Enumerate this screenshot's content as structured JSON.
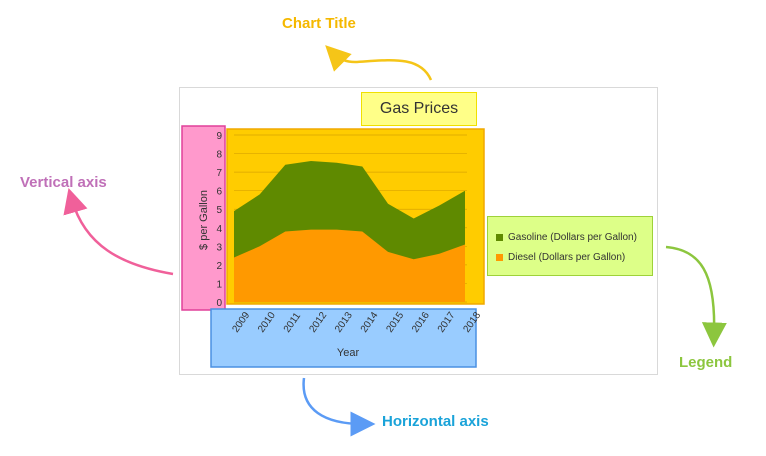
{
  "callouts": {
    "chart_title": "Chart Title",
    "vertical_axis": "Vertical axis",
    "horizontal_axis": "Horizontal axis",
    "legend": "Legend"
  },
  "colors": {
    "chart_title_callout": "#f5b800",
    "vertical_axis_callout": "#c070b8",
    "horizontal_axis_callout": "#1aa3d9",
    "legend_callout": "#8cc63e",
    "arrow_title": "#f5c518",
    "arrow_vertical": "#f0609a",
    "arrow_horizontal": "#5b9bf5",
    "arrow_legend": "#8cc63e",
    "gasoline": "#5f8a00",
    "diesel": "#ff9900",
    "plot_bg": "#ffcc00"
  },
  "chart_data": {
    "type": "area",
    "title": "Gas Prices",
    "xlabel": "Year",
    "ylabel": "$ per Gallon",
    "x": [
      "2009",
      "2010",
      "2011",
      "2012",
      "2013",
      "2014",
      "2015",
      "2016",
      "2017",
      "2018"
    ],
    "yticks": [
      "0",
      "1",
      "2",
      "3",
      "4",
      "5",
      "6",
      "7",
      "8",
      "9"
    ],
    "ylim": [
      0,
      9
    ],
    "grid": true,
    "stacked": false,
    "legend_position": "right",
    "series": [
      {
        "name": "Gasoline (Dollars per Gallon)",
        "values": [
          4.9,
          5.8,
          7.4,
          7.6,
          7.5,
          7.3,
          5.3,
          4.5,
          5.2,
          6.0
        ]
      },
      {
        "name": "Diesel (Dollars per Gallon)",
        "values": [
          2.4,
          3.0,
          3.8,
          3.9,
          3.9,
          3.8,
          2.7,
          2.3,
          2.6,
          3.1
        ]
      }
    ]
  }
}
